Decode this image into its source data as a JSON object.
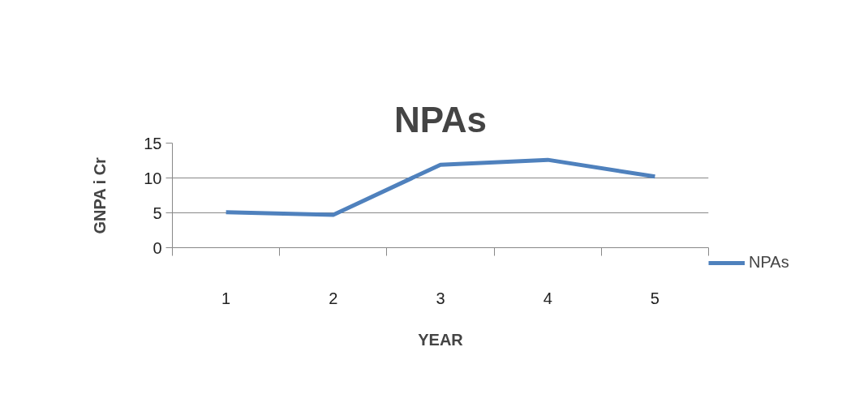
{
  "chart_data": {
    "type": "line",
    "title": "NPAs",
    "xlabel": "YEAR",
    "ylabel": "GNPA i Cr",
    "categories": [
      "1",
      "2",
      "3",
      "4",
      "5"
    ],
    "series": [
      {
        "name": "NPAs",
        "color": "#4f81bd",
        "values": [
          5.1,
          4.7,
          11.9,
          12.6,
          10.2
        ]
      }
    ],
    "ylim": [
      0,
      15
    ],
    "yticks": [
      0,
      5,
      10,
      15
    ],
    "grid": "y",
    "legend": "right",
    "marker": "none",
    "line_style": "solid"
  }
}
